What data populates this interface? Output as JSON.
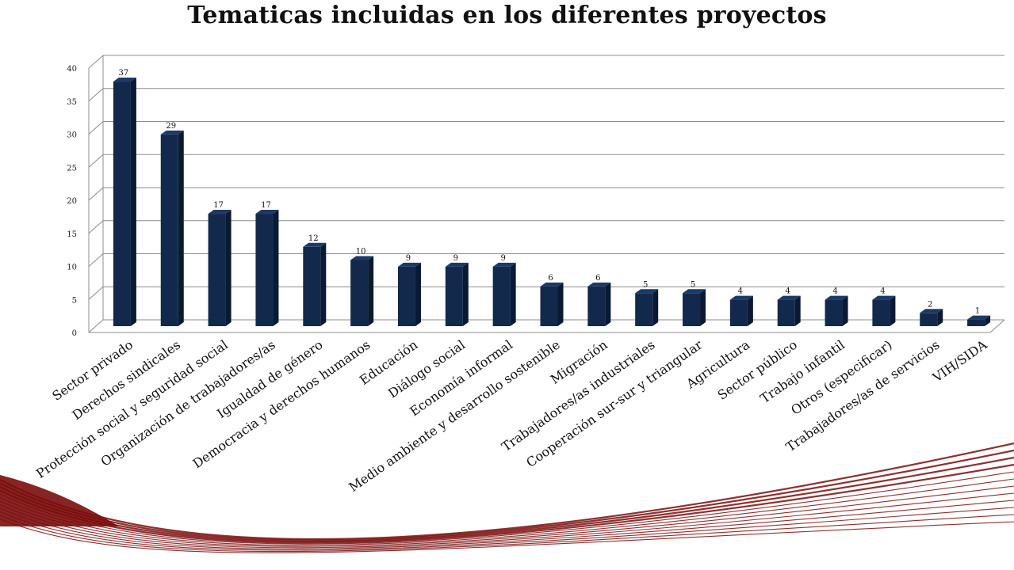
{
  "chart_data": {
    "type": "bar",
    "title": "Tematicas incluidas en los diferentes proyectos",
    "xlabel": "",
    "ylabel": "",
    "ylim": [
      0,
      40
    ],
    "yticks": [
      0,
      5,
      10,
      15,
      20,
      25,
      30,
      35,
      40
    ],
    "grid": true,
    "legend": "none",
    "categories": [
      "Sector privado",
      "Derechos sindicales",
      "Protección social y seguridad social",
      "Organización de trabajadores/as",
      "Igualdad de género",
      "Democracia y derechos humanos",
      "Educación",
      "Diálogo social",
      "Economía informal",
      "Medio ambiente y desarrollo sostenible",
      "Migración",
      "Trabajadores/as industriales",
      "Cooperación sur-sur y triangular",
      "Agricultura",
      "Sector público",
      "Trabajo infantil",
      "Otros (especificar)",
      "Trabajadores/as de servicios",
      "VIH/SIDA"
    ],
    "values": [
      37,
      29,
      17,
      17,
      12,
      10,
      9,
      9,
      9,
      6,
      6,
      5,
      5,
      4,
      4,
      4,
      4,
      2,
      1
    ],
    "colors": {
      "bar_front": "#13294b",
      "bar_side": "#0a1a33",
      "bar_top": "#1d3a66",
      "grid": "#8c8c8c",
      "decor": "#7a0c0c"
    }
  }
}
